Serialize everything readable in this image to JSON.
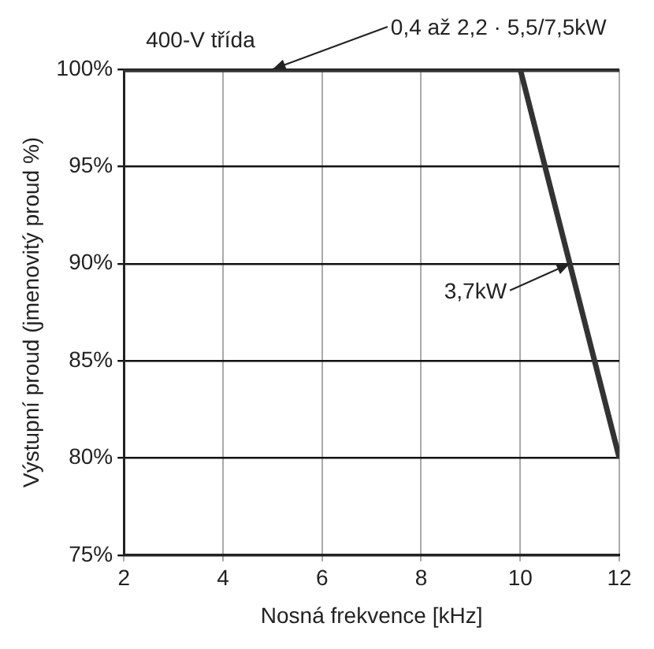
{
  "chart_data": {
    "type": "line",
    "title": "400-V třída",
    "xlabel": "Nosná frekvence [kHz]",
    "ylabel": "Výstupní proud (jmenovitý proud %)",
    "series": [
      {
        "color": "#333333",
        "x": [
          2,
          12
        ],
        "values": [
          100,
          100
        ]
      },
      {
        "color": "#333333",
        "x": [
          2,
          10,
          12
        ],
        "values": [
          100,
          100,
          80
        ]
      }
    ],
    "xlim": [
      2,
      12
    ],
    "xticks": [
      2,
      4,
      6,
      8,
      10,
      12
    ],
    "ylim": [
      75,
      100
    ],
    "yticks": [
      {
        "value": 75,
        "label": "75%"
      },
      {
        "value": 80,
        "label": "80%"
      },
      {
        "value": 85,
        "label": "85%"
      },
      {
        "value": 90,
        "label": "90%"
      },
      {
        "value": 95,
        "label": "95%"
      },
      {
        "value": 100,
        "label": "100%"
      }
    ],
    "annotations": [
      {
        "text": "0,4 až 2,2 · 5,5/7,5kW",
        "x": 5,
        "y": 100
      },
      {
        "text": "3,7kW",
        "x": 11,
        "y": 90
      }
    ],
    "grid": true,
    "legend": false,
    "marker": "none",
    "line_style": "solid"
  }
}
